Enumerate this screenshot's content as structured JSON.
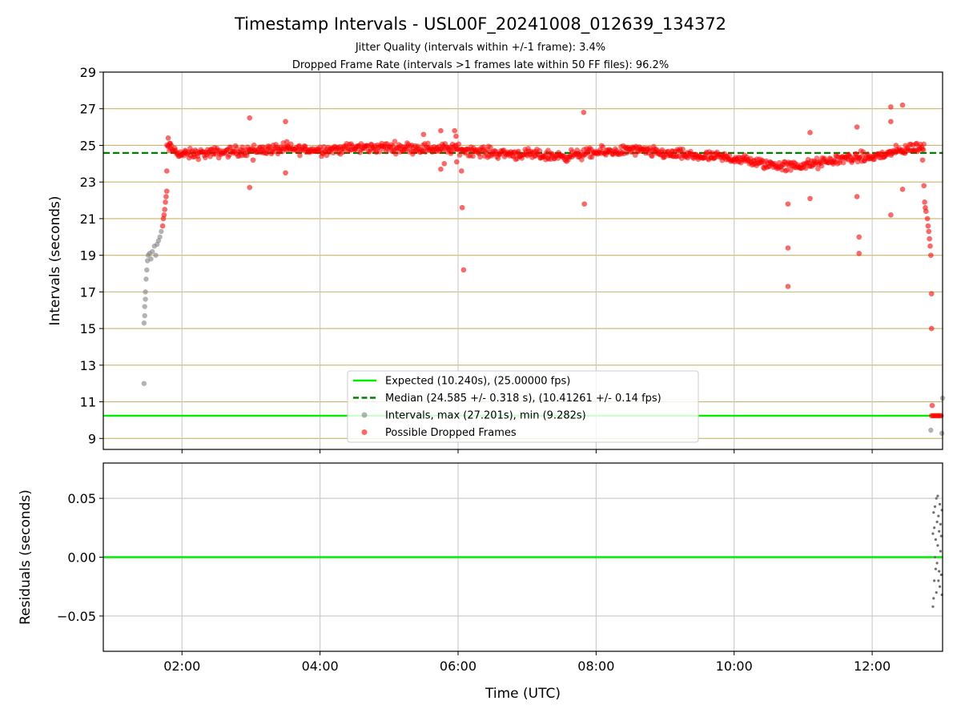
{
  "chart_data": [
    {
      "type": "scatter",
      "title": "Timestamp Intervals - USL00F_20241008_012639_134372",
      "subtitle_lines": [
        "Jitter Quality (intervals within +/-1 frame): 3.4%",
        "Dropped Frame Rate (intervals >1 frames late within 50 FF files): 96.2%"
      ],
      "xlabel": "",
      "ylabel": "Intervals (seconds)",
      "x_unit": "hours UTC",
      "xlim": [
        0.86,
        13.02
      ],
      "ylim": [
        8.4,
        29.0
      ],
      "yticks": [
        9,
        11,
        13,
        15,
        17,
        19,
        21,
        23,
        25,
        27,
        29
      ],
      "xticks": [
        2,
        4,
        6,
        8,
        10,
        12
      ],
      "xtick_labels": [
        "02:00",
        "04:00",
        "06:00",
        "08:00",
        "10:00",
        "12:00"
      ],
      "x_grid": true,
      "y_grid": "odd-second lines",
      "legend_position": "lower-center",
      "legend": [
        {
          "label": "Expected (10.240s), (25.00000 fps)",
          "style": "solid-line",
          "color": "#00ee00"
        },
        {
          "label": "Median (24.585 +/- 0.318 s), (10.41261 +/- 0.14 fps)",
          "style": "dashed-line",
          "color": "#008000"
        },
        {
          "label": "Intervals, max (27.201s), min (9.282s)",
          "style": "marker",
          "color": "#808080"
        },
        {
          "label": "Possible Dropped Frames",
          "style": "marker",
          "color": "#ff0000"
        }
      ],
      "reference_lines": [
        {
          "name": "expected",
          "y": 10.24,
          "color": "#00ee00",
          "style": "solid"
        },
        {
          "name": "median",
          "y": 24.585,
          "color": "#008000",
          "style": "dashed"
        }
      ],
      "series": [
        {
          "color": "#808080",
          "points": [
            [
              1.45,
              12.0
            ],
            [
              1.45,
              15.3
            ],
            [
              1.46,
              15.7
            ],
            [
              1.46,
              16.2
            ],
            [
              1.47,
              16.6
            ],
            [
              1.47,
              17.0
            ],
            [
              1.48,
              17.7
            ],
            [
              1.49,
              18.2
            ],
            [
              1.5,
              18.7
            ],
            [
              1.51,
              19.0
            ],
            [
              1.53,
              19.1
            ],
            [
              1.55,
              18.8
            ],
            [
              1.57,
              19.2
            ],
            [
              1.6,
              19.5
            ],
            [
              1.62,
              19.0
            ],
            [
              1.64,
              19.6
            ],
            [
              1.66,
              19.8
            ],
            [
              1.68,
              20.0
            ],
            [
              1.7,
              20.3
            ],
            [
              12.85,
              9.45
            ],
            [
              13.01,
              9.28
            ],
            [
              13.02,
              11.2
            ]
          ]
        },
        {
          "color": "#ff0000",
          "envelope": {
            "x": [
              1.78,
              1.85,
              2.0,
              2.5,
              3.0,
              3.5,
              4.0,
              4.5,
              5.0,
              5.5,
              6.0,
              6.5,
              7.0,
              7.5,
              8.0,
              8.5,
              9.0,
              9.5,
              10.0,
              10.4,
              10.8,
              11.2,
              11.6,
              12.0,
              12.3,
              12.6,
              12.75
            ],
            "y": [
              24.9,
              24.8,
              24.5,
              24.6,
              24.75,
              24.8,
              24.75,
              24.85,
              24.9,
              24.85,
              24.8,
              24.6,
              24.5,
              24.4,
              24.6,
              24.75,
              24.55,
              24.4,
              24.3,
              24.0,
              23.85,
              24.0,
              24.3,
              24.35,
              24.6,
              24.9,
              24.85
            ],
            "spread": 0.28
          },
          "points": [
            [
              1.72,
              20.6
            ],
            [
              1.73,
              21.0
            ],
            [
              1.74,
              21.2
            ],
            [
              1.75,
              21.5
            ],
            [
              1.76,
              21.9
            ],
            [
              1.77,
              22.2
            ],
            [
              1.78,
              22.5
            ],
            [
              1.78,
              23.6
            ],
            [
              1.8,
              25.4
            ],
            [
              1.83,
              25.1
            ],
            [
              2.98,
              26.5
            ],
            [
              2.98,
              22.7
            ],
            [
              3.03,
              24.2
            ],
            [
              3.5,
              26.3
            ],
            [
              3.5,
              23.5
            ],
            [
              3.52,
              25.2
            ],
            [
              5.5,
              25.6
            ],
            [
              5.75,
              25.8
            ],
            [
              5.75,
              23.7
            ],
            [
              5.8,
              24.0
            ],
            [
              5.95,
              25.8
            ],
            [
              5.97,
              25.5
            ],
            [
              5.98,
              24.1
            ],
            [
              6.05,
              23.6
            ],
            [
              6.06,
              21.6
            ],
            [
              6.08,
              18.2
            ],
            [
              7.82,
              26.8
            ],
            [
              7.83,
              21.8
            ],
            [
              10.78,
              21.8
            ],
            [
              10.78,
              19.4
            ],
            [
              10.78,
              17.3
            ],
            [
              11.1,
              25.7
            ],
            [
              11.1,
              22.1
            ],
            [
              11.78,
              26.0
            ],
            [
              11.78,
              22.2
            ],
            [
              11.81,
              20.0
            ],
            [
              11.81,
              19.1
            ],
            [
              12.27,
              27.1
            ],
            [
              12.27,
              26.3
            ],
            [
              12.27,
              21.2
            ],
            [
              12.44,
              27.2
            ],
            [
              12.44,
              22.6
            ],
            [
              12.73,
              24.2
            ],
            [
              12.75,
              22.8
            ],
            [
              12.76,
              21.9
            ],
            [
              12.77,
              21.6
            ],
            [
              12.78,
              21.4
            ],
            [
              12.8,
              21.0
            ],
            [
              12.81,
              20.6
            ],
            [
              12.82,
              20.3
            ],
            [
              12.83,
              19.9
            ],
            [
              12.84,
              19.5
            ],
            [
              12.85,
              19.0
            ],
            [
              12.86,
              16.9
            ],
            [
              12.86,
              15.0
            ],
            [
              12.87,
              10.8
            ],
            [
              12.86,
              10.24
            ],
            [
              12.88,
              10.24
            ],
            [
              12.9,
              10.24
            ],
            [
              12.92,
              10.24
            ],
            [
              12.94,
              10.24
            ],
            [
              12.96,
              10.24
            ],
            [
              12.98,
              10.24
            ],
            [
              13.0,
              10.24
            ]
          ]
        }
      ]
    },
    {
      "type": "scatter",
      "title": "",
      "xlabel": "Time (UTC)",
      "ylabel": "Residuals (seconds)",
      "xlim": [
        0.86,
        13.02
      ],
      "ylim": [
        -0.08,
        0.08
      ],
      "yticks": [
        0.05,
        0.0,
        -0.05
      ],
      "ytick_labels": [
        "0.05",
        "0.00",
        "−0.05"
      ],
      "xticks": [
        2,
        4,
        6,
        8,
        10,
        12
      ],
      "xtick_labels": [
        "02:00",
        "04:00",
        "06:00",
        "08:00",
        "10:00",
        "12:00"
      ],
      "grid": true,
      "reference_lines": [
        {
          "name": "zero",
          "y": 0.0,
          "color": "#00ee00",
          "style": "solid"
        }
      ],
      "series": [
        {
          "color": "#707070",
          "points": [
            [
              12.88,
              0.02
            ],
            [
              12.88,
              -0.042
            ],
            [
              12.89,
              0.038
            ],
            [
              12.89,
              -0.035
            ],
            [
              12.9,
              0.025
            ],
            [
              12.9,
              -0.02
            ],
            [
              12.91,
              0.043
            ],
            [
              12.91,
              0.0
            ],
            [
              12.92,
              -0.01
            ],
            [
              12.92,
              0.015
            ],
            [
              12.93,
              0.05
            ],
            [
              12.93,
              -0.03
            ],
            [
              12.94,
              0.03
            ],
            [
              12.94,
              -0.005
            ],
            [
              12.95,
              0.052
            ],
            [
              12.95,
              0.01
            ],
            [
              12.96,
              -0.02
            ],
            [
              12.96,
              0.035
            ],
            [
              12.97,
              0.022
            ],
            [
              12.97,
              -0.012
            ],
            [
              12.98,
              0.045
            ],
            [
              12.98,
              -0.025
            ],
            [
              12.99,
              0.005
            ],
            [
              12.99,
              0.028
            ],
            [
              13.0,
              -0.015
            ],
            [
              13.0,
              0.018
            ],
            [
              13.01,
              -0.032
            ],
            [
              13.01,
              0.04
            ]
          ]
        }
      ]
    }
  ]
}
